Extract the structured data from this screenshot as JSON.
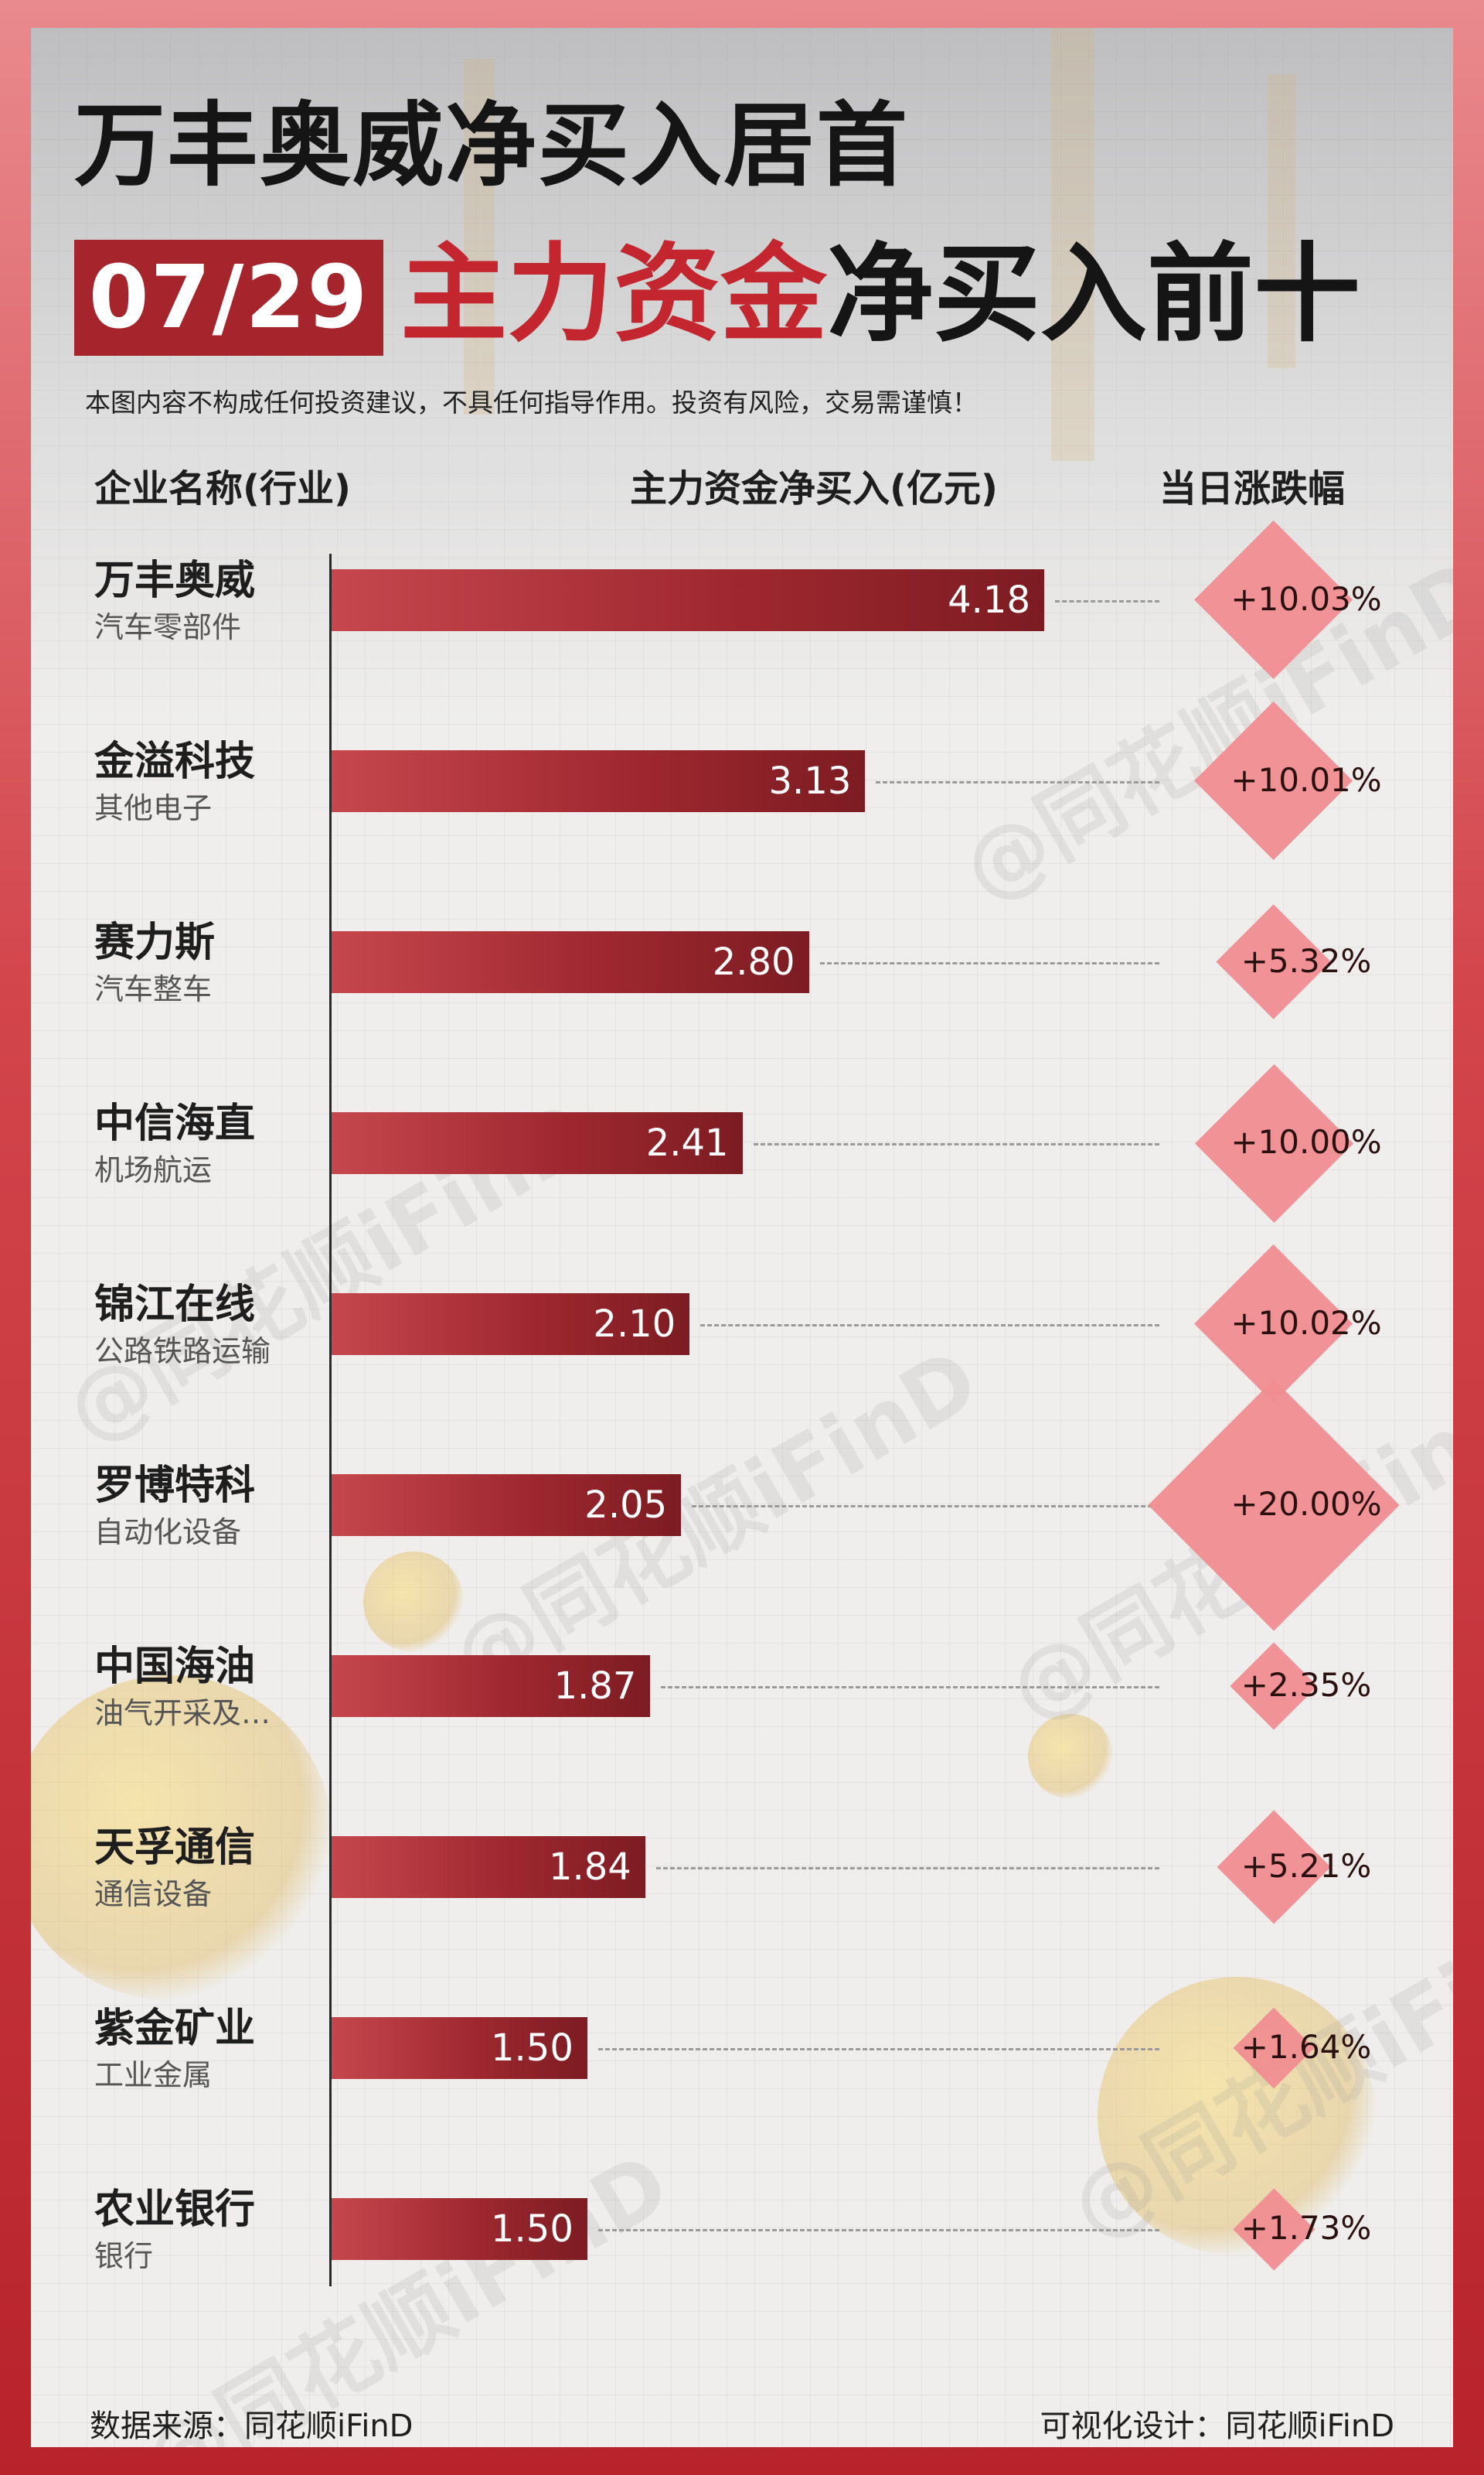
{
  "header": {
    "headline": "万丰奥威净买入居首",
    "date": "07/29",
    "subtitle_red": "主力资金",
    "subtitle_black": "净买入前十",
    "disclaimer": "本图内容不构成任何投资建议，不具任何指导作用。投资有风险，交易需谨慎！"
  },
  "columns": {
    "name": "企业名称(行业)",
    "value": "主力资金净买入(亿元)",
    "change": "当日涨跌幅"
  },
  "watermark": "@同花顺iFinD",
  "colors": {
    "bar": "#a02830",
    "diamond": "#f08d91",
    "date_badge": "#a6252c",
    "accent_red": "#c3262e"
  },
  "chart_data": {
    "type": "bar",
    "orientation": "horizontal",
    "title": "",
    "xlabel": "主力资金净买入(亿元)",
    "ylabel": "企业名称(行业)",
    "categories": [
      "万丰奥威",
      "金溢科技",
      "赛力斯",
      "中信海直",
      "锦江在线",
      "罗博特科",
      "中国海油",
      "天孚通信",
      "紫金矿业",
      "农业银行"
    ],
    "industries": [
      "汽车零部件",
      "其他电子",
      "汽车整车",
      "机场航运",
      "公路铁路运输",
      "自动化设备",
      "油气开采及…",
      "通信设备",
      "工业金属",
      "银行"
    ],
    "values": [
      4.18,
      3.13,
      2.8,
      2.41,
      2.1,
      2.05,
      1.87,
      1.84,
      1.5,
      1.5
    ],
    "value_labels": [
      "4.18",
      "3.13",
      "2.80",
      "2.41",
      "2.10",
      "2.05",
      "1.87",
      "1.84",
      "1.50",
      "1.50"
    ],
    "change_pct": [
      10.03,
      10.01,
      5.32,
      10.0,
      10.02,
      20.0,
      2.35,
      5.21,
      1.64,
      1.73
    ],
    "change_labels": [
      "+10.03%",
      "+10.01%",
      "+5.32%",
      "+10.00%",
      "+10.02%",
      "+20.00%",
      "+2.35%",
      "+5.21%",
      "+1.64%",
      "+1.73%"
    ],
    "grid": true,
    "legend": "none"
  },
  "footer": {
    "source": "数据来源：同花顺iFinD",
    "design": "可视化设计：同花顺iFinD"
  }
}
